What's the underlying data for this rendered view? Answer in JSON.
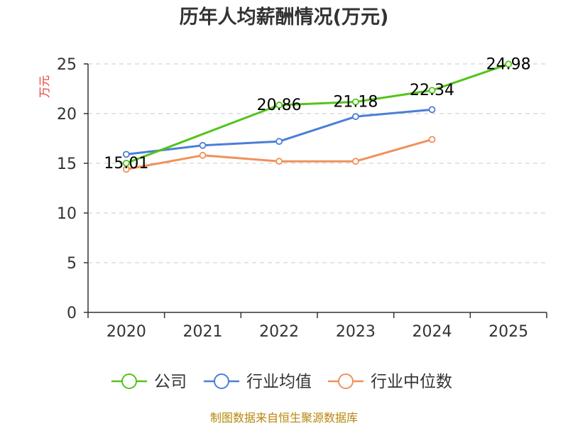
{
  "chart_data": {
    "type": "line",
    "title": "历年人均薪酬情况(万元)",
    "ylabel": "万元",
    "xlabel": "",
    "categories": [
      "2020",
      "2021",
      "2022",
      "2023",
      "2024",
      "2025"
    ],
    "ylim": [
      0,
      25
    ],
    "yticks": [
      0,
      5,
      10,
      15,
      20,
      25
    ],
    "grid": true,
    "legend_position": "bottom",
    "series": [
      {
        "name": "公司",
        "color": "#52c41a",
        "values": [
          15.01,
          null,
          20.86,
          21.18,
          22.34,
          24.98
        ],
        "labels": [
          "15.01",
          null,
          "20.86",
          "21.18",
          "22.34",
          "24.98"
        ]
      },
      {
        "name": "行业均值",
        "color": "#4a7fd6",
        "values": [
          15.9,
          16.8,
          17.2,
          19.7,
          20.4,
          null
        ],
        "labels": [
          null,
          null,
          null,
          null,
          null,
          null
        ]
      },
      {
        "name": "行业中位数",
        "color": "#f0915a",
        "values": [
          14.4,
          15.8,
          15.2,
          15.2,
          17.4,
          null
        ],
        "labels": [
          null,
          null,
          null,
          null,
          null,
          null
        ]
      }
    ],
    "source": "制图数据来自恒生聚源数据库"
  }
}
